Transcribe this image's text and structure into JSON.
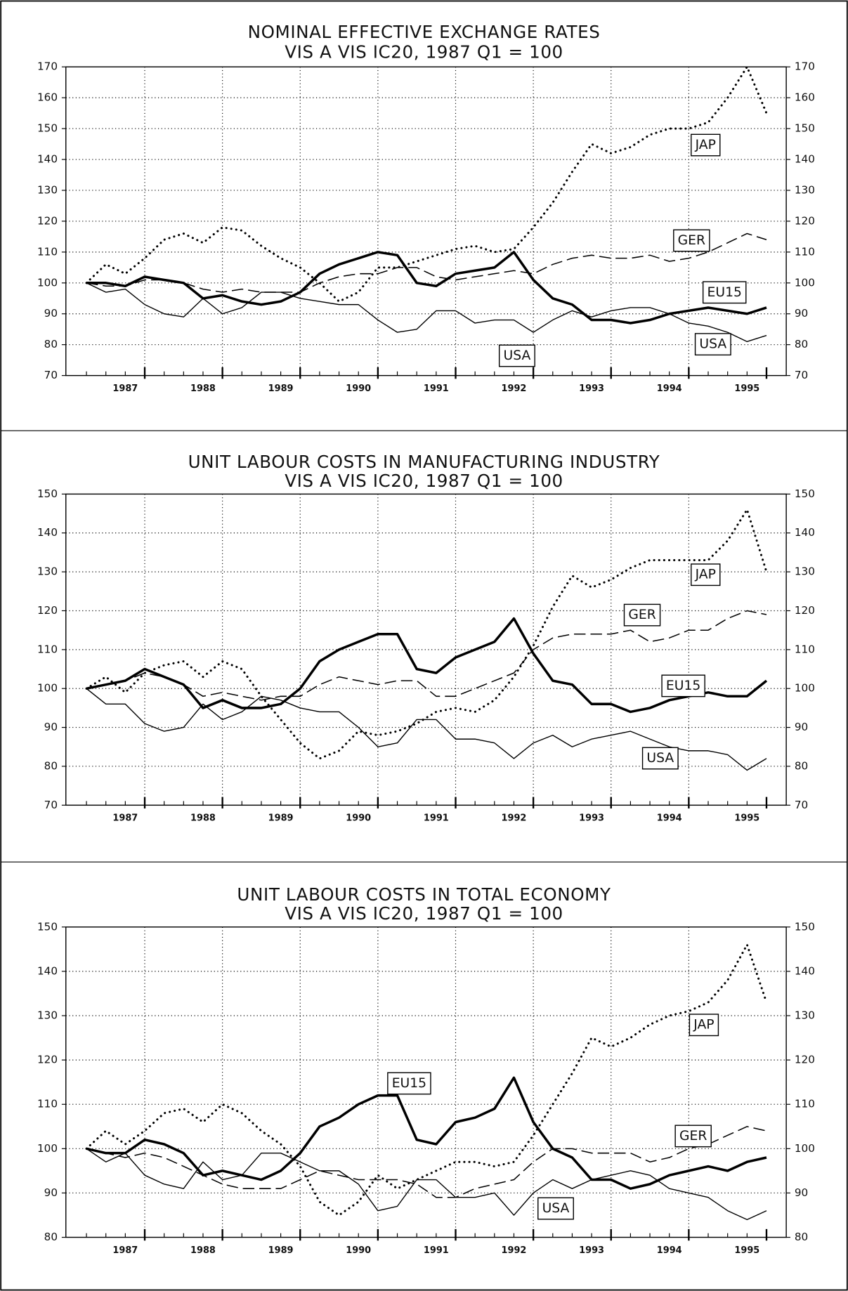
{
  "chart_data": [
    {
      "type": "line",
      "title": "NOMINAL EFFECTIVE EXCHANGE RATES",
      "subtitle": "VIS A VIS IC20,  1987 Q1 = 100",
      "categories": [
        null,
        null,
        "1987",
        null,
        null,
        null,
        "1988",
        null,
        null,
        null,
        "1989",
        null,
        null,
        null,
        "1990",
        null,
        null,
        null,
        "1991",
        null,
        null,
        null,
        "1992",
        null,
        null,
        null,
        "1993",
        null,
        null,
        null,
        "1994",
        null,
        null,
        null,
        "1995",
        null
      ],
      "ylim": [
        70,
        170
      ],
      "yticks": [
        70,
        80,
        90,
        100,
        110,
        120,
        130,
        140,
        150,
        160,
        170
      ],
      "grid": true,
      "series": [
        {
          "name": "JAP",
          "color": "#000",
          "line_style": "dotted",
          "values": [
            100,
            106,
            103,
            108,
            114,
            116,
            113,
            118,
            117,
            112,
            108,
            105,
            100,
            94,
            97,
            105,
            105,
            107,
            109,
            111,
            112,
            110,
            111,
            118,
            126,
            136,
            145,
            142,
            144,
            148,
            150,
            150,
            152,
            160,
            170,
            155
          ]
        },
        {
          "name": "GER",
          "color": "#000",
          "line_style": "dashed",
          "values": [
            100,
            99,
            99,
            101,
            101,
            100,
            98,
            97,
            98,
            97,
            97,
            97,
            100,
            102,
            103,
            103,
            105,
            105,
            102,
            101,
            102,
            103,
            104,
            103,
            106,
            108,
            109,
            108,
            108,
            109,
            107,
            108,
            110,
            113,
            116,
            114
          ]
        },
        {
          "name": "EU15",
          "color": "#000",
          "line_style": "thick",
          "values": [
            100,
            100,
            99,
            102,
            101,
            100,
            95,
            96,
            94,
            93,
            94,
            97,
            103,
            106,
            108,
            110,
            109,
            100,
            99,
            103,
            104,
            105,
            110,
            101,
            95,
            93,
            88,
            88,
            87,
            88,
            90,
            91,
            92,
            91,
            90,
            92
          ]
        },
        {
          "name": "USA",
          "color": "#000",
          "line_style": "thin",
          "values": [
            100,
            97,
            98,
            93,
            90,
            89,
            95,
            90,
            92,
            97,
            97,
            95,
            94,
            93,
            93,
            88,
            84,
            85,
            91,
            91,
            87,
            88,
            88,
            84,
            88,
            91,
            89,
            91,
            92,
            92,
            90,
            87,
            86,
            84,
            81,
            83
          ]
        }
      ]
    },
    {
      "type": "line",
      "title": "UNIT LABOUR COSTS IN MANUFACTURING INDUSTRY",
      "subtitle": "VIS A VIS IC20,  1987 Q1 = 100",
      "categories": [
        null,
        null,
        "1987",
        null,
        null,
        null,
        "1988",
        null,
        null,
        null,
        "1989",
        null,
        null,
        null,
        "1990",
        null,
        null,
        null,
        "1991",
        null,
        null,
        null,
        "1992",
        null,
        null,
        null,
        "1993",
        null,
        null,
        null,
        "1994",
        null,
        null,
        null,
        "1995",
        null
      ],
      "ylim": [
        70,
        150
      ],
      "yticks": [
        70,
        80,
        90,
        100,
        110,
        120,
        130,
        140,
        150
      ],
      "grid": true,
      "series": [
        {
          "name": "JAP",
          "color": "#000",
          "line_style": "dotted",
          "values": [
            100,
            103,
            99,
            104,
            106,
            107,
            103,
            107,
            105,
            98,
            92,
            86,
            82,
            84,
            89,
            88,
            89,
            91,
            94,
            95,
            94,
            97,
            103,
            111,
            121,
            129,
            126,
            128,
            131,
            133,
            133,
            133,
            133,
            138,
            146,
            130
          ]
        },
        {
          "name": "GER",
          "color": "#000",
          "line_style": "dashed",
          "values": [
            100,
            101,
            102,
            104,
            103,
            101,
            98,
            99,
            98,
            97,
            98,
            98,
            101,
            103,
            102,
            101,
            102,
            102,
            98,
            98,
            100,
            102,
            104,
            110,
            113,
            114,
            114,
            114,
            115,
            112,
            113,
            115,
            115,
            118,
            120,
            119
          ]
        },
        {
          "name": "EU15",
          "color": "#000",
          "line_style": "thick",
          "values": [
            100,
            101,
            102,
            105,
            103,
            101,
            95,
            97,
            95,
            95,
            96,
            100,
            107,
            110,
            112,
            114,
            114,
            105,
            104,
            108,
            110,
            112,
            118,
            109,
            102,
            101,
            96,
            96,
            94,
            95,
            97,
            98,
            99,
            98,
            98,
            102
          ]
        },
        {
          "name": "USA",
          "color": "#000",
          "line_style": "thin",
          "values": [
            100,
            96,
            96,
            91,
            89,
            90,
            96,
            92,
            94,
            98,
            97,
            95,
            94,
            94,
            90,
            85,
            86,
            92,
            92,
            87,
            87,
            86,
            82,
            86,
            88,
            85,
            87,
            88,
            89,
            87,
            85,
            84,
            84,
            83,
            79,
            82
          ]
        }
      ]
    },
    {
      "type": "line",
      "title": "UNIT LABOUR COSTS IN TOTAL ECONOMY",
      "subtitle": "VIS A VIS IC20,  1987 Q1 = 100",
      "categories": [
        null,
        null,
        "1987",
        null,
        null,
        null,
        "1988",
        null,
        null,
        null,
        "1989",
        null,
        null,
        null,
        "1990",
        null,
        null,
        null,
        "1991",
        null,
        null,
        null,
        "1992",
        null,
        null,
        null,
        "1993",
        null,
        null,
        null,
        "1994",
        null,
        null,
        null,
        "1995",
        null
      ],
      "ylim": [
        80,
        150
      ],
      "yticks": [
        80,
        90,
        100,
        110,
        120,
        130,
        140,
        150
      ],
      "grid": true,
      "series": [
        {
          "name": "JAP",
          "color": "#000",
          "line_style": "dotted",
          "values": [
            100,
            104,
            101,
            104,
            108,
            109,
            106,
            110,
            108,
            104,
            101,
            96,
            88,
            85,
            88,
            94,
            91,
            93,
            95,
            97,
            97,
            96,
            97,
            103,
            110,
            117,
            125,
            123,
            125,
            128,
            130,
            131,
            133,
            138,
            146,
            133
          ]
        },
        {
          "name": "GER",
          "color": "#000",
          "line_style": "dashed",
          "values": [
            100,
            99,
            98,
            99,
            98,
            96,
            94,
            92,
            91,
            91,
            91,
            93,
            95,
            94,
            93,
            93,
            93,
            92,
            89,
            89,
            91,
            92,
            93,
            97,
            100,
            100,
            99,
            99,
            99,
            97,
            98,
            100,
            101,
            103,
            105,
            104
          ]
        },
        {
          "name": "EU15",
          "color": "#000",
          "line_style": "thick",
          "values": [
            100,
            99,
            99,
            102,
            101,
            99,
            94,
            95,
            94,
            93,
            95,
            99,
            105,
            107,
            110,
            112,
            112,
            102,
            101,
            106,
            107,
            109,
            116,
            106,
            100,
            98,
            93,
            93,
            91,
            92,
            94,
            95,
            96,
            95,
            97,
            98
          ]
        },
        {
          "name": "USA",
          "color": "#000",
          "line_style": "thin",
          "values": [
            100,
            97,
            99,
            94,
            92,
            91,
            97,
            93,
            94,
            99,
            99,
            97,
            95,
            95,
            92,
            86,
            87,
            93,
            93,
            89,
            89,
            90,
            85,
            90,
            93,
            91,
            93,
            94,
            95,
            94,
            91,
            90,
            89,
            86,
            84,
            86
          ]
        }
      ]
    }
  ]
}
